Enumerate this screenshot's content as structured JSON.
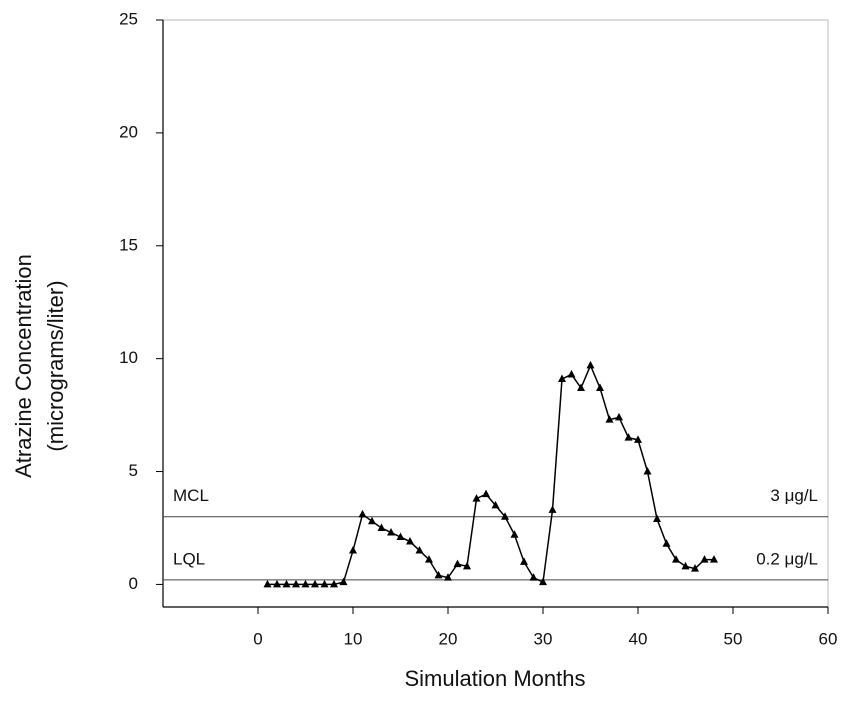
{
  "chart_data": {
    "type": "line",
    "y_label": [
      "Atrazine Concentration",
      "(micrograms/liter)"
    ],
    "x_label": "Simulation Months",
    "x": [
      1,
      2,
      3,
      4,
      5,
      6,
      7,
      8,
      9,
      10,
      11,
      12,
      13,
      14,
      15,
      16,
      17,
      18,
      19,
      20,
      21,
      22,
      23,
      24,
      25,
      26,
      27,
      28,
      29,
      30,
      31,
      32,
      33,
      34,
      35,
      36,
      37,
      38,
      39,
      40,
      41,
      42,
      43,
      44,
      45,
      46,
      47,
      48
    ],
    "series": [
      {
        "color": "#000000",
        "values": [
          0,
          0,
          0,
          0,
          0,
          0,
          0,
          0,
          0.1,
          1.5,
          3.1,
          2.8,
          2.5,
          2.3,
          2.1,
          1.9,
          1.5,
          1.1,
          0.4,
          0.3,
          0.9,
          0.8,
          3.8,
          4.0,
          3.5,
          3.0,
          2.2,
          1.0,
          0.3,
          0.1,
          3.3,
          9.1,
          9.3,
          8.7,
          9.7,
          8.7,
          7.3,
          7.4,
          6.5,
          6.4,
          5.0,
          2.9,
          1.8,
          1.1,
          0.8,
          0.7,
          1.1,
          1.1
        ]
      }
    ],
    "xlim": [
      -10,
      60
    ],
    "xticks": [
      0,
      10,
      20,
      30,
      40,
      50,
      60
    ],
    "ylim": [
      -1,
      25
    ],
    "yticks": [
      0,
      5,
      10,
      15,
      20,
      25
    ],
    "reference_lines": [
      {
        "value": 3,
        "label_left": "MCL",
        "label_right": "3 μg/L"
      },
      {
        "value": 0.2,
        "label_left": "LQL",
        "label_right": "0.2 μg/L"
      }
    ]
  }
}
